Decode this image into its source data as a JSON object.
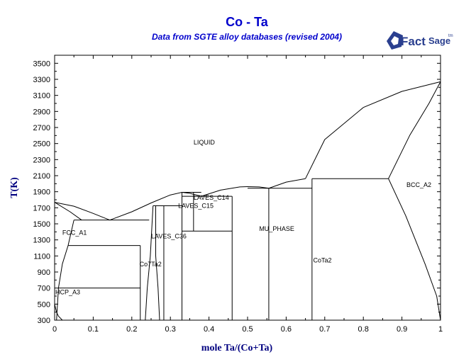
{
  "chart_data": {
    "type": "line",
    "title": "Co - Ta",
    "subtitle": "Data from SGTE alloy databases (revised 2004)",
    "xlabel": "mole Ta/(Co+Ta)",
    "ylabel": "T(K)",
    "xlim": [
      0,
      1
    ],
    "ylim": [
      300,
      3600
    ],
    "x_ticks": [
      "0",
      "0.1",
      "0.2",
      "0.3",
      "0.4",
      "0.5",
      "0.6",
      "0.7",
      "0.8",
      "0.9",
      "1"
    ],
    "y_ticks": [
      "300",
      "500",
      "700",
      "900",
      "1100",
      "1300",
      "1500",
      "1700",
      "1900",
      "2100",
      "2300",
      "2500",
      "2700",
      "2900",
      "3100",
      "3300",
      "3500"
    ],
    "grid": false,
    "regions": [
      {
        "label": "LIQUID",
        "x": 0.36,
        "y": 2490
      },
      {
        "label": "BCC_A2",
        "x": 0.93,
        "y": 1960
      },
      {
        "label": "LAVES_C14",
        "x": 0.36,
        "y": 1800
      },
      {
        "label": "LAVES_C15",
        "x": 0.32,
        "y": 1700
      },
      {
        "label": "MU_PHASE",
        "x": 0.53,
        "y": 1410
      },
      {
        "label": "FCC_A1",
        "x": 0.02,
        "y": 1365
      },
      {
        "label": "LAVES_C36",
        "x": 0.25,
        "y": 1320
      },
      {
        "label": "CoTa2",
        "x": 0.67,
        "y": 1020
      },
      {
        "label": "Co7Ta2",
        "x": 0.22,
        "y": 970
      },
      {
        "label": "HCP_A3",
        "x": 0.0,
        "y": 620
      }
    ],
    "phase_boundaries": [
      {
        "name": "liquidus-co-side",
        "x": [
          0,
          0.05,
          0.1,
          0.143
        ],
        "y": [
          1768,
          1720,
          1630,
          1547
        ]
      },
      {
        "name": "solidus-fcc",
        "x": [
          0,
          0.04,
          0.07
        ],
        "y": [
          1768,
          1650,
          1547
        ]
      },
      {
        "name": "liquidus-c15",
        "x": [
          0.143,
          0.2,
          0.25,
          0.3,
          0.33
        ],
        "y": [
          1547,
          1650,
          1760,
          1860,
          1893
        ]
      },
      {
        "name": "liquidus-c14",
        "x": [
          0.33,
          0.35,
          0.38
        ],
        "y": [
          1893,
          1880,
          1843
        ]
      },
      {
        "name": "liquidus-mu-rise",
        "x": [
          0.38,
          0.43,
          0.48,
          0.5
        ],
        "y": [
          1843,
          1920,
          1960,
          1963
        ]
      },
      {
        "name": "liquidus-mu-fall",
        "x": [
          0.5,
          0.53,
          0.555
        ],
        "y": [
          1963,
          1960,
          1943
        ]
      },
      {
        "name": "liquidus-cota2",
        "x": [
          0.555,
          0.6,
          0.65
        ],
        "y": [
          1943,
          2020,
          2063
        ]
      },
      {
        "name": "liquidus-bcc",
        "x": [
          0.65,
          0.7,
          0.8,
          0.9,
          1.0
        ],
        "y": [
          2063,
          2550,
          2950,
          3150,
          3270
        ]
      },
      {
        "name": "solidus-bcc",
        "x": [
          0.865,
          0.92,
          0.97,
          1.0
        ],
        "y": [
          2063,
          2600,
          3000,
          3270
        ]
      },
      {
        "name": "bcc-solvus",
        "x": [
          0.865,
          0.91,
          0.96,
          0.99,
          1.0
        ],
        "y": [
          2063,
          1600,
          1000,
          600,
          300
        ]
      },
      {
        "name": "fcc-solvus-left",
        "x": [
          0.005,
          0.01,
          0.02,
          0.035,
          0.05
        ],
        "y": [
          300,
          700,
          1000,
          1230,
          1547
        ]
      },
      {
        "name": "fcc-solvus-right",
        "x": [
          0,
          0.005,
          0.01,
          0.02
        ],
        "y": [
          500,
          400,
          350,
          300
        ]
      },
      {
        "name": "c15-left-solvus",
        "x": [
          0.235,
          0.24,
          0.248,
          0.255
        ],
        "y": [
          300,
          700,
          1100,
          1725
        ]
      },
      {
        "name": "c15-right-solvus",
        "x": [
          0.272,
          0.268,
          0.262,
          0.262
        ],
        "y": [
          300,
          700,
          1100,
          1725
        ]
      }
    ],
    "invariants": [
      {
        "T": 1547,
        "x": [
          0.05,
          0.245
        ]
      },
      {
        "T": 1725,
        "x": [
          0.255,
          0.33
        ]
      },
      {
        "T": 1893,
        "x": [
          0.33,
          0.38
        ]
      },
      {
        "T": 1843,
        "x": [
          0.33,
          0.46
        ]
      },
      {
        "T": 1410,
        "x": [
          0.33,
          0.46
        ]
      },
      {
        "T": 1943,
        "x": [
          0.5,
          0.555
        ]
      },
      {
        "T": 1943,
        "x": [
          0.555,
          0.667
        ]
      },
      {
        "T": 2063,
        "x": [
          0.667,
          0.865
        ]
      },
      {
        "T": 1230,
        "x": [
          0.035,
          0.222
        ]
      },
      {
        "T": 700,
        "x": [
          0.01,
          0.222
        ]
      }
    ],
    "vertical_lines": [
      {
        "x": 0.222,
        "y": [
          300,
          1230
        ]
      },
      {
        "x": 0.33,
        "y": [
          300,
          1893
        ]
      },
      {
        "x": 0.36,
        "y": [
          1410,
          1893
        ]
      },
      {
        "x": 0.46,
        "y": [
          300,
          1843
        ]
      },
      {
        "x": 0.555,
        "y": [
          300,
          1943
        ]
      },
      {
        "x": 0.667,
        "y": [
          300,
          2063
        ]
      },
      {
        "x": 0.283,
        "y": [
          300,
          1725
        ]
      }
    ]
  },
  "logo": {
    "text1": "Fact",
    "text2": "Sage",
    "tm": "tm"
  }
}
